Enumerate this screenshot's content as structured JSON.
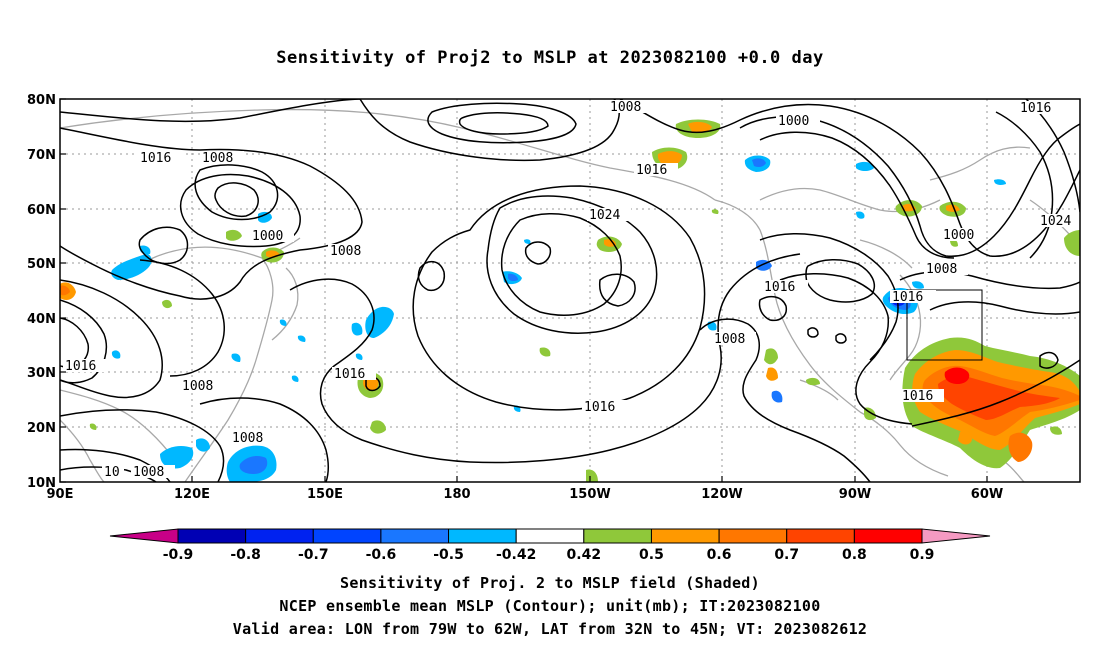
{
  "title": "Sensitivity of Proj2 to MSLP at 2023082100 +0.0 day",
  "lat_ticks": [
    "80N",
    "70N",
    "60N",
    "50N",
    "40N",
    "30N",
    "20N",
    "10N"
  ],
  "lon_ticks": [
    "90E",
    "120E",
    "150E",
    "180",
    "150W",
    "120W",
    "90W",
    "60W"
  ],
  "contour_labels": [
    "1008",
    "1016",
    "1016",
    "1008",
    "1000",
    "1008",
    "1024",
    "1016",
    "1000",
    "1016",
    "1000",
    "1008",
    "1016",
    "1024",
    "1016",
    "1008",
    "1008",
    "1016",
    "1016",
    "1008",
    "1016",
    "10",
    "1008"
  ],
  "colorbar": {
    "labels": [
      "-0.9",
      "-0.8",
      "-0.7",
      "-0.6",
      "-0.5",
      "-0.42",
      "0.42",
      "0.5",
      "0.6",
      "0.7",
      "0.8",
      "0.9"
    ],
    "colors": [
      "#0000b4",
      "#0022f0",
      "#0044ff",
      "#1a77ff",
      "#00b8ff",
      "#ffffff",
      "#8fc83a",
      "#ff9900",
      "#ff7700",
      "#ff4400",
      "#ff0000"
    ],
    "low_color": "#c80087",
    "high_color": "#f59ac2"
  },
  "captions": {
    "line1": "Sensitivity of Proj. 2 to MSLP field (Shaded)",
    "line2": "NCEP ensemble mean MSLP (Contour); unit(mb); IT:2023082100",
    "line3": "Valid area: LON from 79W to 62W, LAT from 32N to 45N; VT: 2023082612"
  },
  "valid_area": {
    "lon": [
      "79W",
      "62W"
    ],
    "lat": [
      "32N",
      "45N"
    ]
  }
}
